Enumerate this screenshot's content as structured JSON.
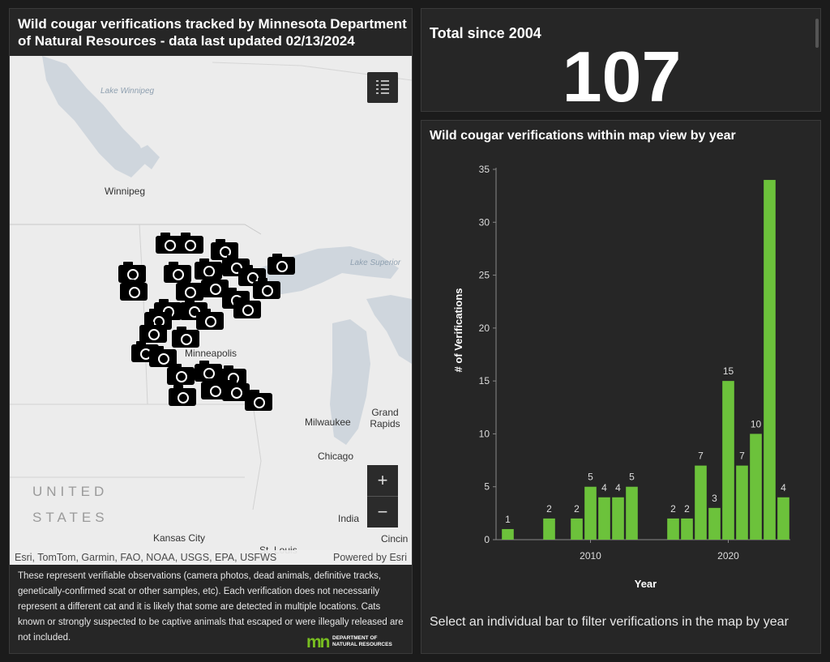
{
  "map_panel": {
    "title": "Wild cougar verifications tracked by Minnesota Department of Natural Resources - data last updated 02/13/2024",
    "attribution": "Esri, TomTom, Garmin, FAO, NOAA, USGS, EPA, USFWS",
    "powered_by": "Powered by Esri",
    "zoom_in": "+",
    "zoom_out": "−",
    "labels": {
      "lake_winnipeg": "Lake Winnipeg",
      "winnipeg": "Winnipeg",
      "lake_superior": "Lake Superior",
      "minneapolis": "Minneapolis",
      "milwaukee": "Milwaukee",
      "grand_rapids": "Grand Rapids",
      "chicago": "Chicago",
      "united": "UNITED",
      "states": "STATES",
      "kansas_city": "Kansas City",
      "indianapolis": "India",
      "st_louis": "St. Louis",
      "cincinnati": "Cincin"
    },
    "footnote": "These represent verifiable observations (camera photos, dead animals, definitive tracks, genetically-confirmed scat or other samples, etc).  Each verification does not necessarily represent a different cat and it is likely that some are detected in multiple locations.  Cats known or strongly suspected to be captive animals that escaped or were illegally released are not included.",
    "logo": {
      "mark": "mn",
      "line1": "DEPARTMENT OF",
      "line2": "NATURAL RESOURCES"
    },
    "icons": {
      "list": "layer-list-icon",
      "marker": "camera-icon"
    }
  },
  "total_panel": {
    "label": "Total since 2004",
    "value": "107"
  },
  "chart_panel": {
    "title": "Wild cougar verifications within map view by year",
    "hint": "Select an individual bar to filter verifications in the map by year"
  },
  "chart_data": {
    "type": "bar",
    "x": [
      2004,
      2005,
      2006,
      2007,
      2008,
      2009,
      2010,
      2011,
      2012,
      2013,
      2014,
      2015,
      2016,
      2017,
      2018,
      2019,
      2020,
      2021,
      2022,
      2023,
      2024
    ],
    "values": [
      1,
      0,
      0,
      2,
      0,
      2,
      5,
      4,
      4,
      5,
      0,
      0,
      2,
      2,
      7,
      3,
      15,
      7,
      10,
      34,
      4
    ],
    "data_labels": [
      "1",
      "",
      "",
      "2",
      "",
      "2",
      "5",
      "4",
      "4",
      "5",
      "",
      "",
      "2",
      "2",
      "7",
      "3",
      "15",
      "7",
      "10",
      "",
      "4"
    ],
    "xlabel": "Year",
    "ylabel": "# of Verifications",
    "ylim": [
      0,
      35
    ],
    "yticks": [
      0,
      5,
      10,
      15,
      20,
      25,
      30,
      35
    ],
    "xticks": [
      2010,
      2020
    ],
    "bar_color": "#6cc23b",
    "grid": false
  }
}
